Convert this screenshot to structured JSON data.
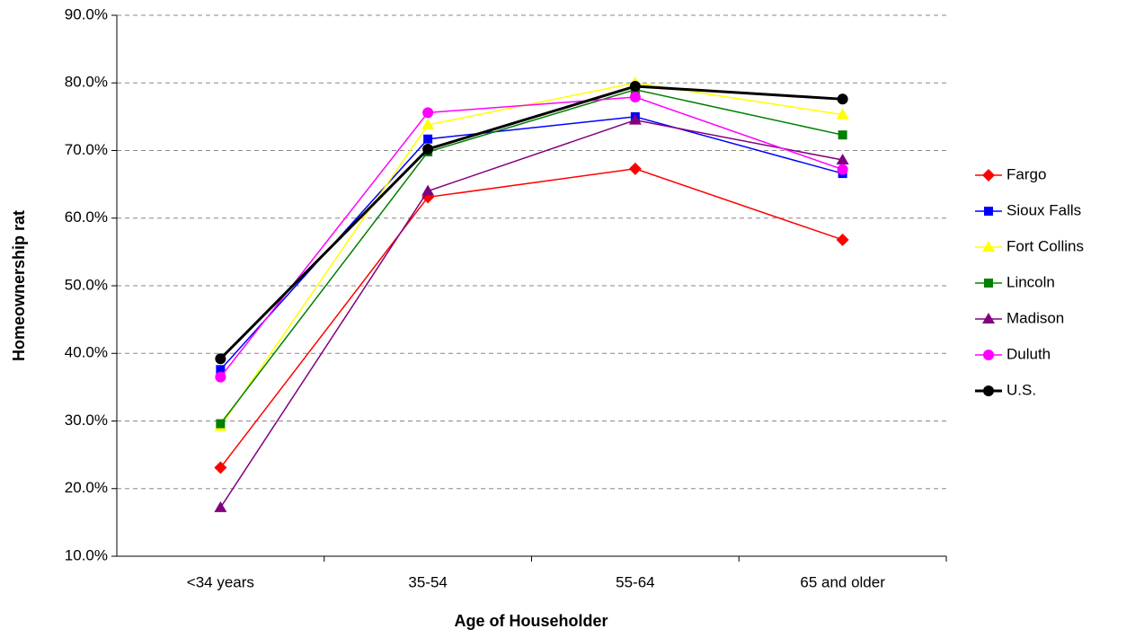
{
  "chart_data": {
    "type": "line",
    "x_label": "Age of Householder",
    "y_label": "Homeownership rat",
    "categories": [
      "<34 years",
      "35-54",
      "55-64",
      "65 and older"
    ],
    "ylim": [
      10,
      90
    ],
    "yticks": [
      {
        "value": 10,
        "label": "10.0%"
      },
      {
        "value": 20,
        "label": "20.0%"
      },
      {
        "value": 30,
        "label": "30.0%"
      },
      {
        "value": 40,
        "label": "40.0%"
      },
      {
        "value": 50,
        "label": "50.0%"
      },
      {
        "value": 60,
        "label": "60.0%"
      },
      {
        "value": 70,
        "label": "70.0%"
      },
      {
        "value": 80,
        "label": "80.0%"
      },
      {
        "value": 90,
        "label": "90.0%"
      }
    ],
    "grid": true,
    "legend": "right",
    "series": [
      {
        "name": "Fargo",
        "color": "#ff0000",
        "marker": "diamond",
        "line_width": 1.5,
        "values": [
          23.1,
          63.1,
          67.3,
          56.8
        ]
      },
      {
        "name": "Sioux Falls",
        "color": "#0000ff",
        "marker": "square",
        "line_width": 1.5,
        "values": [
          37.6,
          71.7,
          75.0,
          66.6
        ]
      },
      {
        "name": "Fort Collins",
        "color": "#ffff00",
        "marker": "triangle",
        "line_width": 1.5,
        "values": [
          29.2,
          73.8,
          80.0,
          75.3
        ]
      },
      {
        "name": "Lincoln",
        "color": "#008000",
        "marker": "square",
        "line_width": 1.5,
        "values": [
          29.6,
          69.8,
          79.0,
          72.3
        ]
      },
      {
        "name": "Madison",
        "color": "#800080",
        "marker": "triangle",
        "line_width": 1.5,
        "values": [
          17.2,
          64.0,
          74.5,
          68.6
        ]
      },
      {
        "name": "Duluth",
        "color": "#ff00ff",
        "marker": "circle",
        "line_width": 1.5,
        "values": [
          36.5,
          75.6,
          77.9,
          67.2
        ]
      },
      {
        "name": "U.S.",
        "color": "#000000",
        "marker": "circle",
        "line_width": 3,
        "values": [
          39.2,
          70.2,
          79.5,
          77.6
        ]
      }
    ]
  }
}
